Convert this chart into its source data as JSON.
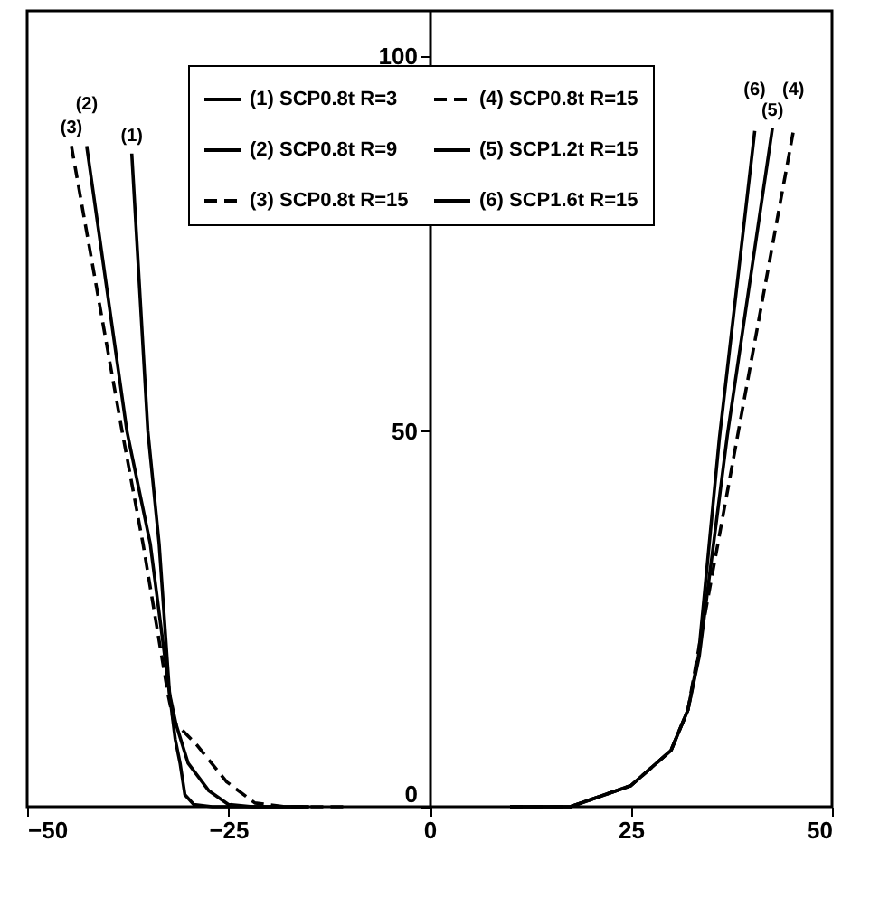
{
  "chart_data": {
    "type": "line",
    "xlim": [
      -50,
      50
    ],
    "ylim": [
      0,
      106
    ],
    "xticks": [
      -50,
      -25,
      0,
      25,
      50
    ],
    "yticks": [
      0,
      50,
      100
    ],
    "grid": false,
    "legend": "top",
    "marker": "none",
    "series": [
      {
        "name": "(1) SCP0.8t R=3",
        "color": "#000000",
        "line_style": "solid",
        "x": [
          -37,
          -35,
          -33.6,
          -32.3,
          -31.6,
          -31,
          -30.4,
          -29.3,
          -27,
          -15
        ],
        "values": [
          87,
          50,
          35,
          15,
          9,
          5.8,
          1.6,
          0.3,
          0,
          0
        ]
      },
      {
        "name": "(2) SCP0.8t R=9",
        "color": "#000000",
        "line_style": "solid",
        "x": [
          -42.6,
          -37.6,
          -34.7,
          -32.3,
          -31.5,
          -30,
          -27.4,
          -25,
          -22,
          -15
        ],
        "values": [
          88,
          50,
          35,
          15,
          11,
          5.8,
          2.1,
          0.3,
          0,
          0
        ]
      },
      {
        "name": "(3) SCP0.8t R=15",
        "color": "#000000",
        "line_style": "dashed",
        "x": [
          -44.5,
          -38.2,
          -35.6,
          -32.5,
          -31.8,
          -28.9,
          -25.2,
          -21.7,
          -18,
          -10
        ],
        "values": [
          88,
          50,
          35,
          15,
          11.4,
          8.2,
          3.3,
          0.5,
          0,
          0
        ]
      },
      {
        "name": "(4) SCP0.8t R=15",
        "color": "#000000",
        "line_style": "dashed",
        "x": [
          10,
          17.5,
          25,
          30,
          32.1,
          33.6,
          38.2,
          45.2
        ],
        "values": [
          0,
          0,
          2.8,
          7.5,
          12.9,
          22,
          49,
          90
        ]
      },
      {
        "name": "(5) SCP1.2t R=15",
        "color": "#000000",
        "line_style": "solid",
        "x": [
          10,
          17.5,
          25,
          30,
          32.1,
          33.5,
          37,
          42.6
        ],
        "values": [
          0,
          0,
          2.8,
          7.5,
          12.9,
          20,
          49.5,
          90.4
        ]
      },
      {
        "name": "(6) SCP1.6t R=15",
        "color": "#000000",
        "line_style": "solid",
        "x": [
          10,
          17.5,
          25,
          30,
          32.1,
          33.4,
          36,
          40.4
        ],
        "values": [
          0,
          0,
          2.8,
          7.5,
          12.9,
          20,
          49,
          90
        ]
      }
    ],
    "annotations": [
      {
        "text": "(3)",
        "x": -44.5,
        "y": 88
      },
      {
        "text": "(2)",
        "x": -42.6,
        "y": 88
      },
      {
        "text": "(1)",
        "x": -37,
        "y": 87
      },
      {
        "text": "(6)",
        "x": 40.4,
        "y": 90
      },
      {
        "text": "(5)",
        "x": 42.6,
        "y": 90.4
      },
      {
        "text": "(4)",
        "x": 45.2,
        "y": 90
      }
    ]
  }
}
